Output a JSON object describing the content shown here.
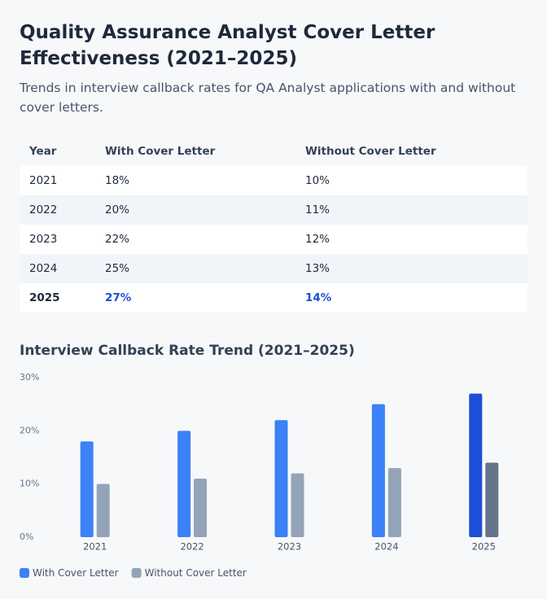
{
  "header": {
    "title": "Quality Assurance Analyst Cover Letter Effectiveness (2021–2025)",
    "subtitle": "Trends in interview callback rates for QA Analyst applications with and without cover letters."
  },
  "table": {
    "columns": [
      "Year",
      "With Cover Letter",
      "Without Cover Letter"
    ],
    "rows": [
      [
        "2021",
        "18%",
        "10%"
      ],
      [
        "2022",
        "20%",
        "11%"
      ],
      [
        "2023",
        "22%",
        "12%"
      ],
      [
        "2024",
        "25%",
        "13%"
      ],
      [
        "2025",
        "27%",
        "14%"
      ]
    ]
  },
  "chart_data": {
    "type": "bar",
    "title": "Interview Callback Rate Trend (2021–2025)",
    "categories": [
      "2021",
      "2022",
      "2023",
      "2024",
      "2025"
    ],
    "series": [
      {
        "name": "With Cover Letter",
        "color": "#3b82f6",
        "colors": [
          "#3b82f6",
          "#3b82f6",
          "#3b82f6",
          "#3b82f6",
          "#1d4ed8"
        ],
        "values": [
          18,
          20,
          22,
          25,
          27
        ]
      },
      {
        "name": "Without Cover Letter",
        "color": "#94a3b8",
        "colors": [
          "#94a3b8",
          "#94a3b8",
          "#94a3b8",
          "#94a3b8",
          "#64748b"
        ],
        "values": [
          10,
          11,
          12,
          13,
          14
        ]
      }
    ],
    "ylim": [
      0,
      30
    ],
    "yticks": [
      {
        "value": 0,
        "label": "0%"
      },
      {
        "value": 10,
        "label": "10%"
      },
      {
        "value": 20,
        "label": "20%"
      },
      {
        "value": 30,
        "label": "30%"
      }
    ],
    "grid": false
  }
}
